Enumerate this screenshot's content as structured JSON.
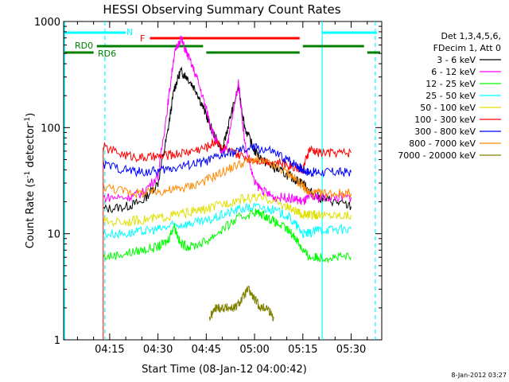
{
  "chart_data": {
    "type": "line",
    "title": "HESSI Observing Summary Count Rates",
    "xlabel": "Start Time (08-Jan-12 04:00:42)",
    "ylabel_parts": [
      "Count Rate (s",
      "-1",
      " detector",
      "-1",
      ")"
    ],
    "y_log": true,
    "ylim": [
      1,
      1000
    ],
    "xlim_minutes_after_0400": [
      0.7,
      99.5
    ],
    "x_tick_labels": [
      "04:15",
      "04:30",
      "04:45",
      "05:00",
      "05:15",
      "05:30"
    ],
    "x_tick_minutes": [
      15,
      30,
      45,
      60,
      75,
      90
    ],
    "y_tick_labels": [
      "1",
      "10",
      "100",
      "1000"
    ],
    "y_tick_values": [
      1,
      10,
      100,
      1000
    ],
    "legend_header": [
      "Det 1,3,4,5,6,",
      "FDecim 1, Att 0"
    ],
    "series": [
      {
        "name": "3 - 6 keV",
        "color": "#000000",
        "x": [
          13,
          20,
          25,
          30,
          33,
          35,
          37,
          39,
          42,
          45,
          47,
          50,
          52,
          55,
          57,
          60,
          63,
          66,
          70,
          73,
          75,
          77,
          80,
          85,
          90
        ],
        "y": [
          17,
          18,
          20,
          30,
          90,
          230,
          340,
          300,
          220,
          130,
          90,
          60,
          110,
          240,
          100,
          60,
          48,
          42,
          36,
          32,
          30,
          25,
          22,
          20,
          18
        ]
      },
      {
        "name": "6 - 12 keV",
        "color": "#ff00ff",
        "x": [
          13,
          20,
          25,
          30,
          33,
          35,
          37,
          39,
          42,
          45,
          47,
          50,
          52,
          55,
          57,
          60,
          63,
          66,
          70,
          73,
          75,
          77,
          80,
          85,
          90
        ],
        "y": [
          22,
          22,
          24,
          35,
          160,
          480,
          700,
          500,
          300,
          150,
          90,
          55,
          80,
          270,
          70,
          30,
          25,
          22,
          22,
          21,
          20,
          22,
          22,
          22,
          22
        ]
      },
      {
        "name": "12 - 25 keV",
        "color": "#00ff00",
        "x": [
          13,
          20,
          25,
          30,
          33,
          35,
          37,
          40,
          45,
          50,
          55,
          60,
          63,
          66,
          70,
          73,
          75,
          77,
          80,
          85,
          90
        ],
        "y": [
          6,
          6.5,
          7,
          7.5,
          8.5,
          12,
          8,
          7.5,
          8.5,
          11,
          14,
          16,
          15,
          13,
          11,
          9,
          7,
          6,
          6,
          6,
          6
        ]
      },
      {
        "name": "25 - 50 keV",
        "color": "#00ffff",
        "x": [
          13,
          20,
          25,
          30,
          35,
          40,
          45,
          50,
          55,
          60,
          65,
          70,
          73,
          75,
          77,
          80,
          85,
          90
        ],
        "y": [
          10,
          10,
          10.5,
          11,
          12,
          12.5,
          13,
          15,
          17,
          18,
          17,
          15,
          12,
          10,
          10,
          11,
          11,
          11
        ]
      },
      {
        "name": "50 - 100 keV",
        "color": "#e0e000",
        "x": [
          13,
          20,
          25,
          30,
          35,
          40,
          45,
          50,
          55,
          60,
          65,
          70,
          73,
          75,
          77,
          80,
          85,
          90
        ],
        "y": [
          13,
          13,
          13.5,
          14,
          15,
          16,
          17,
          19,
          21,
          22,
          21,
          18,
          16,
          15,
          15,
          15,
          15,
          15
        ]
      },
      {
        "name": "100 - 300 keV",
        "color": "#ff0000",
        "x": [
          13,
          20,
          25,
          30,
          35,
          40,
          45,
          48,
          52,
          55,
          60,
          65,
          70,
          73,
          75,
          77,
          80,
          85,
          90
        ],
        "y": [
          65,
          55,
          52,
          53,
          56,
          60,
          65,
          75,
          60,
          55,
          50,
          48,
          45,
          42,
          40,
          62,
          58,
          58,
          58
        ]
      },
      {
        "name": "300 - 800 keV",
        "color": "#0000ff",
        "x": [
          13,
          20,
          25,
          30,
          35,
          40,
          45,
          50,
          55,
          60,
          65,
          70,
          73,
          75,
          77,
          80,
          85,
          90
        ],
        "y": [
          45,
          40,
          38,
          39,
          42,
          45,
          48,
          55,
          60,
          65,
          60,
          50,
          45,
          40,
          38,
          38,
          38,
          38
        ]
      },
      {
        "name": "800 - 7000 keV",
        "color": "#ff8800",
        "x": [
          13,
          20,
          25,
          30,
          35,
          40,
          45,
          50,
          55,
          60,
          65,
          70,
          73,
          75,
          77,
          80,
          85,
          90
        ],
        "y": [
          28,
          25,
          24,
          25,
          26,
          28,
          32,
          38,
          45,
          50,
          45,
          38,
          32,
          28,
          24,
          24,
          24,
          24
        ]
      },
      {
        "name": "7000 - 20000 keV",
        "color": "#808000",
        "x": [
          46,
          48,
          50,
          52,
          54,
          56,
          58,
          60,
          62,
          64,
          66
        ],
        "y": [
          1.6,
          2,
          2,
          2,
          2,
          2.4,
          3,
          2.4,
          2,
          2,
          1.6
        ]
      }
    ],
    "flags": {
      "labels": [
        "N",
        "F",
        "RD0",
        "RD6"
      ],
      "n_color": "#00ffff",
      "f_color": "#ff0000",
      "rd_color": "#008000"
    }
  },
  "footer_date": "8-Jan-2012 03:27"
}
